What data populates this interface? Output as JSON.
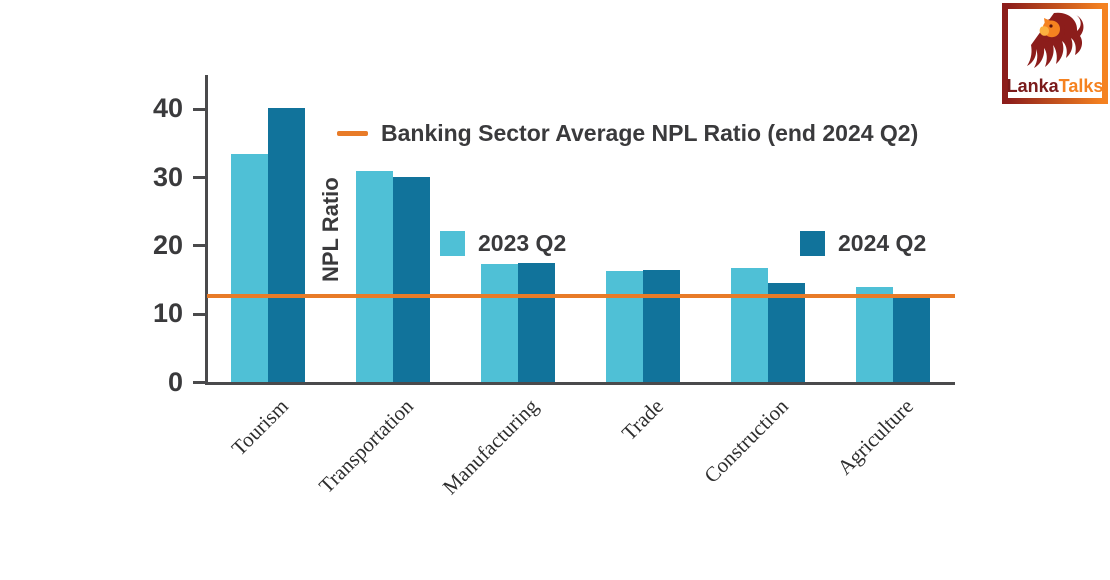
{
  "chart_data": {
    "type": "bar",
    "title": "",
    "ylabel": "NPL Ratio",
    "xlabel": "",
    "categories": [
      "Tourism",
      "Transportation",
      "Manufacturing",
      "Trade",
      "Construction",
      "Agriculture"
    ],
    "series": [
      {
        "name": "2023 Q2",
        "color": "#4fc0d6",
        "values": [
          33.5,
          31.0,
          17.4,
          16.3,
          16.7,
          14.0
        ]
      },
      {
        "name": "2024 Q2",
        "color": "#11739b",
        "values": [
          40.2,
          30.1,
          17.5,
          16.4,
          14.6,
          12.4
        ]
      }
    ],
    "reference_line": {
      "label": "Banking Sector Average NPL Ratio (end 2024 Q2)",
      "value": 12.7,
      "color": "#e87b28"
    },
    "yticks": [
      0,
      10,
      20,
      30,
      40
    ],
    "ylim": [
      0,
      45
    ],
    "grid": false,
    "legend_position": "inside-plot"
  },
  "colors": {
    "axis": "#4a4a4c",
    "text": "#3a3a3c"
  },
  "logo": {
    "brand_first": "Lanka",
    "brand_second": "Talks",
    "maroon": "#8c1d1b",
    "orange": "#f58220"
  }
}
